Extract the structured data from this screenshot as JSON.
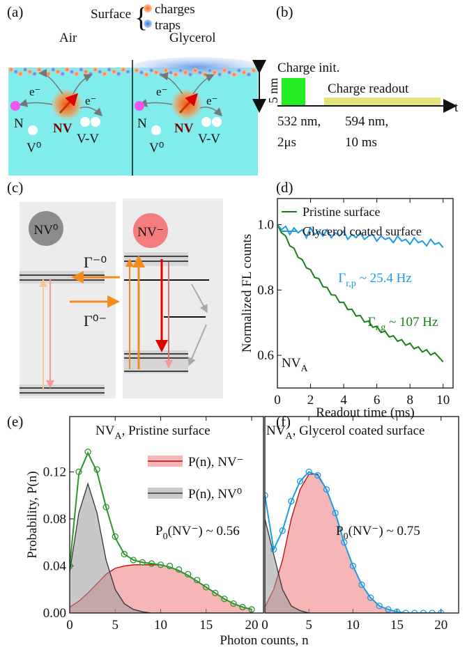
{
  "panel_labels": [
    "(a)",
    "(b)",
    "(c)",
    "(d)",
    "(e)",
    "(f)"
  ],
  "panel_a": {
    "surface": "Surface",
    "charges": "charges",
    "traps": "traps",
    "air": "Air",
    "glycerol": "Glycerol",
    "depth": "5 nm",
    "electron_labels": [
      "e⁻",
      "e⁻",
      "e⁻",
      "e⁻"
    ],
    "left": {
      "n": "N",
      "nv": "NV",
      "v0": "V⁰",
      "vv": "V-V"
    },
    "right": {
      "n": "N",
      "nv": "NV",
      "v0": "V⁰",
      "vv": "V-V"
    }
  },
  "panel_b": {
    "init": "Charge init.",
    "readout": "Charge readout",
    "t": "t",
    "green_wavelength": "532 nm,",
    "green_time": "2μs",
    "yellow_wavelength": "594 nm,",
    "yellow_time": "10 ms"
  },
  "panel_c": {
    "nv0": "NV⁰",
    "nvm": "NV⁻",
    "rate_m0": "Γ⁻⁰",
    "rate_0m": "Γ⁰⁻"
  },
  "chart_data": [
    {
      "type": "line",
      "xlabel": "Readout time (ms)",
      "ylabel": "Normalized FL counts",
      "xlim": [
        0,
        10.6
      ],
      "ylim": [
        0.5,
        1.08
      ],
      "xticks": [
        0,
        2,
        4,
        6,
        8,
        10
      ],
      "yticks": [
        {
          "value": 0.6,
          "label": "0.6"
        },
        {
          "value": 0.8,
          "label": "0.8"
        },
        {
          "value": 1,
          "label": "1.0"
        }
      ],
      "legend": "upper left",
      "x": [
        0,
        0.25,
        0.5,
        0.75,
        1,
        1.25,
        1.5,
        1.75,
        2,
        2.25,
        2.5,
        2.75,
        3,
        3.25,
        3.5,
        3.75,
        4,
        4.25,
        4.5,
        4.75,
        5,
        5.25,
        5.5,
        5.75,
        6,
        6.25,
        6.5,
        6.75,
        7,
        7.25,
        7.5,
        7.75,
        8,
        8.25,
        8.5,
        8.75,
        9,
        9.25,
        9.5,
        9.75,
        10
      ],
      "series": [
        {
          "name": "Pristine surface",
          "color": "#1a7d1a",
          "values": [
            1.0,
            0.975,
            0.965,
            0.935,
            0.928,
            0.9,
            0.893,
            0.868,
            0.862,
            0.838,
            0.835,
            0.81,
            0.808,
            0.785,
            0.784,
            0.762,
            0.762,
            0.74,
            0.741,
            0.72,
            0.722,
            0.702,
            0.705,
            0.686,
            0.689,
            0.67,
            0.674,
            0.656,
            0.66,
            0.643,
            0.648,
            0.631,
            0.637,
            0.62,
            0.626,
            0.61,
            0.617,
            0.601,
            0.608,
            0.594,
            0.58
          ]
        },
        {
          "name": "Glycerol coated surface",
          "color": "#1e9be6",
          "values": [
            1.0,
            0.985,
            0.995,
            0.97,
            0.99,
            0.975,
            0.985,
            0.96,
            0.99,
            0.97,
            0.98,
            0.965,
            0.985,
            0.96,
            0.975,
            0.965,
            0.98,
            0.955,
            0.97,
            0.96,
            0.975,
            0.955,
            0.965,
            0.97,
            0.95,
            0.965,
            0.955,
            0.96,
            0.945,
            0.965,
            0.95,
            0.955,
            0.94,
            0.96,
            0.945,
            0.95,
            0.935,
            0.955,
            0.94,
            0.945,
            0.93
          ]
        }
      ],
      "annotations": [
        {
          "color": "#1e9be6",
          "parts": {
            "main": "Γ",
            "sub": "r,p",
            "rest": " ~ 25.4 Hz"
          }
        },
        {
          "color": "#1a7d1a",
          "parts": {
            "main": "Γ",
            "sub": "r,g",
            "rest": " ~ 107 Hz"
          }
        },
        {
          "color": "#111111",
          "parts": {
            "main": "NV",
            "sub": "A"
          }
        }
      ]
    },
    {
      "type": "area",
      "xlabel": "Photon counts, n",
      "ylabel": "Probability, P(n)",
      "xlim": [
        0,
        21.3
      ],
      "ylim": [
        0,
        0.167
      ],
      "xticks": [
        0,
        5,
        10,
        15,
        20
      ],
      "yticks": [
        {
          "value": 0,
          "label": "0.00"
        },
        {
          "value": 0.04,
          "label": "0.04"
        },
        {
          "value": 0.08,
          "label": "0.08"
        },
        {
          "value": 0.12,
          "label": "0.12"
        }
      ],
      "legend": "center right",
      "x": [
        0,
        1,
        2,
        3,
        4,
        5,
        6,
        7,
        8,
        9,
        10,
        11,
        12,
        13,
        14,
        15,
        16,
        17,
        18,
        19,
        20
      ],
      "series": [
        {
          "name": "P(n), NV⁻",
          "kind": "area",
          "color": "#f07a7a",
          "edge": "#c40000",
          "values": [
            0.005,
            0.01,
            0.017,
            0.025,
            0.033,
            0.038,
            0.04,
            0.041,
            0.041,
            0.041,
            0.041,
            0.039,
            0.036,
            0.032,
            0.027,
            0.022,
            0.017,
            0.012,
            0.008,
            0.005,
            0.003
          ]
        },
        {
          "name": "P(n), NV⁰",
          "kind": "area",
          "color": "#9a9a9a",
          "edge": "#333333",
          "values": [
            0.035,
            0.085,
            0.11,
            0.085,
            0.045,
            0.02,
            0.008,
            0.003,
            0.001,
            0,
            0,
            0,
            0,
            0,
            0,
            0,
            0,
            0,
            0,
            0,
            0
          ]
        },
        {
          "kind": "line",
          "color": "#2a962a",
          "values": [
            0.04,
            0.118,
            0.136,
            0.12,
            0.09,
            0.064,
            0.05,
            0.045,
            0.043,
            0.042,
            0.041,
            0.039,
            0.036,
            0.032,
            0.027,
            0.022,
            0.017,
            0.012,
            0.008,
            0.005,
            0.003
          ]
        },
        {
          "kind": "markers",
          "color": "#2a962a",
          "values": [
            0.04,
            0.12,
            0.137,
            0.122,
            0.09,
            0.065,
            0.05,
            0.045,
            0.043,
            0.042,
            0.041,
            0.04,
            0.037,
            0.033,
            0.028,
            0.022,
            0.017,
            0.012,
            0.008,
            0.005,
            0.003
          ]
        }
      ],
      "annotations": [
        {
          "color": "#111111",
          "parts": {
            "main": "NV",
            "sub": "A",
            "rest": ", Pristine surface"
          }
        },
        {
          "color": "#111111",
          "parts": {
            "main": "P",
            "sub": "0",
            "rest": "(NV⁻) ~ 0.56"
          }
        }
      ]
    },
    {
      "type": "area",
      "xlim": [
        0,
        22
      ],
      "ylim": [
        0,
        0.167
      ],
      "xticks": [
        0,
        5,
        10,
        15,
        20
      ],
      "x": [
        0,
        1,
        2,
        3,
        4,
        5,
        6,
        7,
        8,
        9,
        10,
        11,
        12,
        13,
        14,
        15,
        16,
        17,
        18,
        19,
        20
      ],
      "series": [
        {
          "kind": "area",
          "color": "#f07a7a",
          "edge": "#c40000",
          "values": [
            0.005,
            0.02,
            0.045,
            0.08,
            0.105,
            0.118,
            0.118,
            0.105,
            0.085,
            0.06,
            0.04,
            0.024,
            0.013,
            0.006,
            0.003,
            0.001,
            0,
            0,
            0,
            0,
            0
          ]
        },
        {
          "kind": "area",
          "color": "#9a9a9a",
          "edge": "#333333",
          "values": [
            0.08,
            0.05,
            0.02,
            0.006,
            0.002,
            0,
            0,
            0,
            0,
            0,
            0,
            0,
            0,
            0,
            0,
            0,
            0,
            0,
            0,
            0,
            0
          ]
        },
        {
          "kind": "line",
          "color": "#1e9be6",
          "values": [
            0.1,
            0.054,
            0.07,
            0.095,
            0.112,
            0.12,
            0.117,
            0.105,
            0.085,
            0.06,
            0.04,
            0.024,
            0.013,
            0.006,
            0.003,
            0.001,
            0,
            0,
            0,
            0,
            0
          ]
        },
        {
          "kind": "markers",
          "color": "#1e9be6",
          "values": [
            0.1,
            0.054,
            0.07,
            0.095,
            0.112,
            0.12,
            0.117,
            0.105,
            0.085,
            0.06,
            0.04,
            0.024,
            0.013,
            0.006,
            0.003,
            0.001,
            0,
            0,
            0,
            0,
            0
          ]
        }
      ],
      "annotations": [
        {
          "color": "#111111",
          "parts": {
            "main": "NV",
            "sub": "A",
            "rest": ", Glycerol coated surface"
          }
        },
        {
          "color": "#111111",
          "parts": {
            "main": "P",
            "sub": "0",
            "rest": "(NV⁻) ~ 0.75"
          }
        }
      ]
    }
  ]
}
